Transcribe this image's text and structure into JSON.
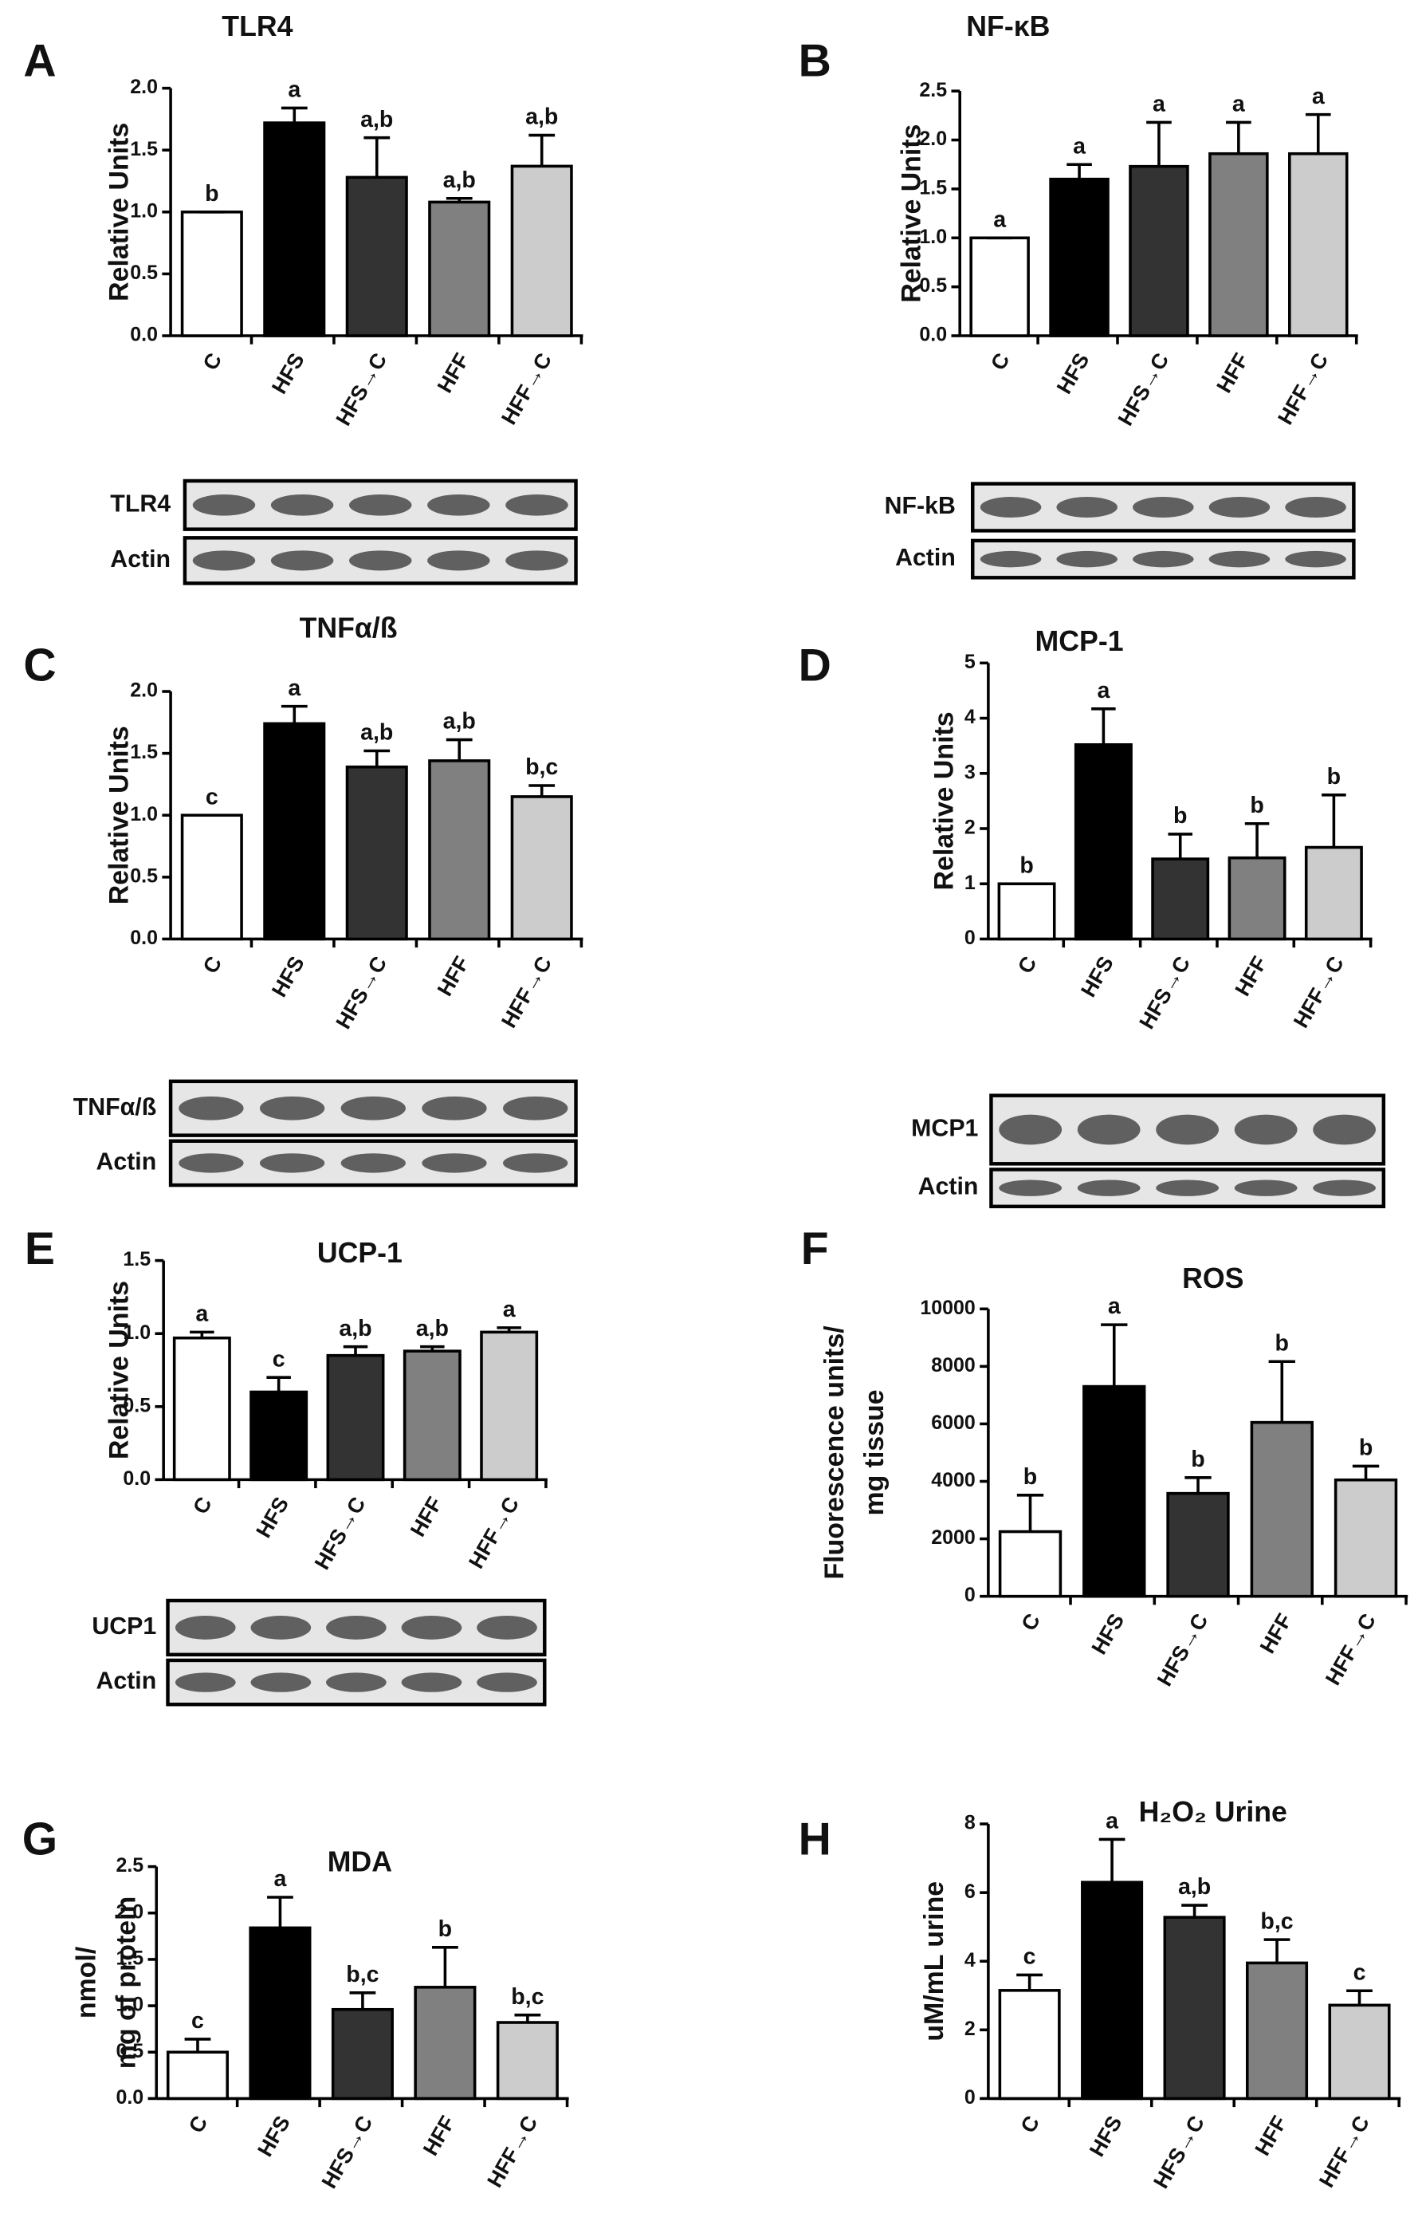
{
  "chart_data": [
    {
      "type": "bar",
      "panel": "A",
      "title": "TLR4",
      "ylabel": [
        "Relative Units"
      ],
      "categories": [
        "C",
        "HFS",
        "HFS→C",
        "HFF",
        "HFF→C"
      ],
      "values": [
        1.0,
        1.72,
        1.28,
        1.08,
        1.37
      ],
      "errors": [
        0,
        0.12,
        0.32,
        0.03,
        0.25
      ],
      "annotations": [
        "b",
        "a",
        "a,b",
        "a,b",
        "a,b"
      ],
      "colors": [
        "#ffffff",
        "#000000",
        "#333333",
        "#808080",
        "#cccccc"
      ],
      "ylim": [
        0,
        2
      ],
      "yticks": [
        {
          "value": 0,
          "label": "0.0"
        },
        {
          "value": 0.5,
          "label": "0.5"
        },
        {
          "value": 1,
          "label": "1.0"
        },
        {
          "value": 1.5,
          "label": "1.5"
        },
        {
          "value": 2,
          "label": "2.0"
        }
      ],
      "blot_labels": [
        "TLR4",
        "Actin"
      ]
    },
    {
      "type": "bar",
      "panel": "B",
      "title": "NF-κB",
      "ylabel": [
        "Relative Units"
      ],
      "categories": [
        "C",
        "HFS",
        "HFS→C",
        "HFF",
        "HFF→C"
      ],
      "values": [
        1.0,
        1.6,
        1.73,
        1.86,
        1.86
      ],
      "errors": [
        0,
        0.15,
        0.45,
        0.32,
        0.4
      ],
      "annotations": [
        "a",
        "a",
        "a",
        "a",
        "a"
      ],
      "colors": [
        "#ffffff",
        "#000000",
        "#333333",
        "#808080",
        "#cccccc"
      ],
      "ylim": [
        0,
        2.5
      ],
      "yticks": [
        {
          "value": 0,
          "label": "0.0"
        },
        {
          "value": 0.5,
          "label": "0.5"
        },
        {
          "value": 1,
          "label": "1.0"
        },
        {
          "value": 1.5,
          "label": "1.5"
        },
        {
          "value": 2,
          "label": "2.0"
        },
        {
          "value": 2.5,
          "label": "2.5"
        }
      ],
      "blot_labels": [
        "NF-kB",
        "Actin"
      ]
    },
    {
      "type": "bar",
      "panel": "C",
      "title": "TNFα/ß",
      "ylabel": [
        "Relative Units"
      ],
      "categories": [
        "C",
        "HFS",
        "HFS→C",
        "HFF",
        "HFF→C"
      ],
      "values": [
        1.0,
        1.74,
        1.39,
        1.44,
        1.15
      ],
      "errors": [
        0,
        0.14,
        0.13,
        0.17,
        0.09
      ],
      "annotations": [
        "c",
        "a",
        "a,b",
        "a,b",
        "b,c"
      ],
      "colors": [
        "#ffffff",
        "#000000",
        "#333333",
        "#808080",
        "#cccccc"
      ],
      "ylim": [
        0,
        2
      ],
      "yticks": [
        {
          "value": 0,
          "label": "0.0"
        },
        {
          "value": 0.5,
          "label": "0.5"
        },
        {
          "value": 1,
          "label": "1.0"
        },
        {
          "value": 1.5,
          "label": "1.5"
        },
        {
          "value": 2,
          "label": "2.0"
        }
      ],
      "blot_labels": [
        "TNFα/ß",
        "Actin"
      ]
    },
    {
      "type": "bar",
      "panel": "D",
      "title": "MCP-1",
      "ylabel": [
        "Relative Units"
      ],
      "categories": [
        "C",
        "HFS",
        "HFS→C",
        "HFF",
        "HFF→C"
      ],
      "values": [
        1.0,
        3.52,
        1.45,
        1.47,
        1.66
      ],
      "errors": [
        0,
        0.65,
        0.45,
        0.62,
        0.95
      ],
      "annotations": [
        "b",
        "a",
        "b",
        "b",
        "b"
      ],
      "colors": [
        "#ffffff",
        "#000000",
        "#333333",
        "#808080",
        "#cccccc"
      ],
      "ylim": [
        0,
        5
      ],
      "yticks": [
        0,
        1,
        2,
        3,
        4,
        5
      ],
      "blot_labels": [
        "MCP1",
        "Actin"
      ]
    },
    {
      "type": "bar",
      "panel": "E",
      "title": "UCP-1",
      "ylabel": [
        "Relative Units"
      ],
      "categories": [
        "C",
        "HFS",
        "HFS→C",
        "HFF",
        "HFF→C"
      ],
      "values": [
        0.97,
        0.6,
        0.85,
        0.88,
        1.01
      ],
      "errors": [
        0.04,
        0.1,
        0.06,
        0.03,
        0.03
      ],
      "annotations": [
        "a",
        "c",
        "a,b",
        "a,b",
        "a"
      ],
      "colors": [
        "#ffffff",
        "#000000",
        "#333333",
        "#808080",
        "#cccccc"
      ],
      "ylim": [
        0,
        1.5
      ],
      "yticks": [
        {
          "value": 0,
          "label": "0.0"
        },
        {
          "value": 0.5,
          "label": "0.5"
        },
        {
          "value": 1,
          "label": "1.0"
        },
        {
          "value": 1.5,
          "label": "1.5"
        }
      ],
      "blot_labels": [
        "UCP1",
        "Actin"
      ]
    },
    {
      "type": "bar",
      "panel": "F",
      "title": "ROS",
      "ylabel": [
        "Fluorescence units/",
        "mg tissue"
      ],
      "categories": [
        "C",
        "HFS",
        "HFS→C",
        "HFF",
        "HFF→C"
      ],
      "values": [
        2250,
        7300,
        3580,
        6050,
        4050
      ],
      "errors": [
        1270,
        2150,
        550,
        2120,
        480
      ],
      "annotations": [
        "b",
        "a",
        "b",
        "b",
        "b"
      ],
      "colors": [
        "#ffffff",
        "#000000",
        "#333333",
        "#808080",
        "#cccccc"
      ],
      "ylim": [
        0,
        10000
      ],
      "yticks": [
        0,
        2000,
        4000,
        6000,
        8000,
        10000
      ]
    },
    {
      "type": "bar",
      "panel": "G",
      "title": "MDA",
      "ylabel": [
        "nmol/",
        "mg of protein"
      ],
      "categories": [
        "C",
        "HFS",
        "HFS→C",
        "HFF",
        "HFF→C"
      ],
      "values": [
        0.5,
        1.84,
        0.96,
        1.2,
        0.82
      ],
      "errors": [
        0.14,
        0.33,
        0.18,
        0.43,
        0.08
      ],
      "annotations": [
        "c",
        "a",
        "b,c",
        "b",
        "b,c"
      ],
      "colors": [
        "#ffffff",
        "#000000",
        "#333333",
        "#808080",
        "#cccccc"
      ],
      "ylim": [
        0,
        2.5
      ],
      "yticks": [
        {
          "value": 0,
          "label": "0.0"
        },
        {
          "value": 0.5,
          "label": "0.5"
        },
        {
          "value": 1,
          "label": "1.0"
        },
        {
          "value": 1.5,
          "label": "1.5"
        },
        {
          "value": 2,
          "label": "2.0"
        },
        {
          "value": 2.5,
          "label": "2.5"
        }
      ]
    },
    {
      "type": "bar",
      "panel": "H",
      "title": "H₂O₂ Urine",
      "ylabel": [
        "uM/mL urine"
      ],
      "categories": [
        "C",
        "HFS",
        "HFS→C",
        "HFF",
        "HFF→C"
      ],
      "values": [
        3.15,
        6.3,
        5.28,
        3.95,
        2.72
      ],
      "errors": [
        0.45,
        1.25,
        0.35,
        0.68,
        0.42
      ],
      "annotations": [
        "c",
        "a",
        "a,b",
        "b,c",
        "c"
      ],
      "colors": [
        "#ffffff",
        "#000000",
        "#333333",
        "#808080",
        "#cccccc"
      ],
      "ylim": [
        0,
        8
      ],
      "yticks": [
        0,
        2,
        4,
        6,
        8
      ]
    }
  ]
}
